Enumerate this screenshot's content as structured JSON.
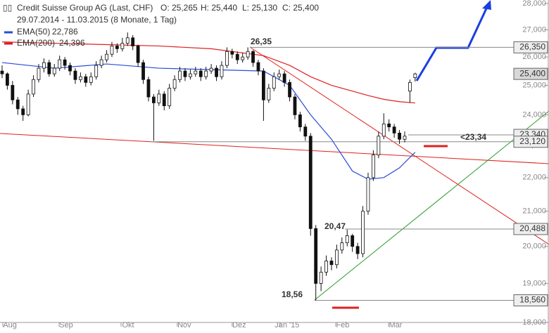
{
  "chart_data": {
    "type": "candlestick",
    "header": {
      "title": "Credit Suisse Group AG (Last, CHF)",
      "open": "O: 25,265",
      "high": "H: 25,440",
      "low": "L: 25,130",
      "close": "C: 25,400",
      "range": "29.07.2014 - 11.03.2015 (8 Monate, 1 Tag)"
    },
    "log_scale": true,
    "ylim": [
      18000,
      28000
    ],
    "yticks": [
      {
        "value": 18000,
        "label": "18,000"
      },
      {
        "value": 19000,
        "label": "19,000"
      },
      {
        "value": 20000,
        "label": "20,000"
      },
      {
        "value": 21000,
        "label": "21,000"
      },
      {
        "value": 22000,
        "label": "22,000"
      },
      {
        "value": 23000,
        "label": "23,000"
      },
      {
        "value": 24000,
        "label": "24,000"
      },
      {
        "value": 25000,
        "label": "25,000"
      },
      {
        "value": 26000,
        "label": "26,000"
      },
      {
        "value": 27000,
        "label": "27,000"
      },
      {
        "value": 28000,
        "label": "28,000"
      }
    ],
    "xlim": [
      -0.8,
      209.2
    ],
    "xticks": [
      {
        "value": 3,
        "label": "Aug"
      },
      {
        "value": 24.5,
        "label": "Sep"
      },
      {
        "value": 48.2,
        "label": "Okt"
      },
      {
        "value": 69.7,
        "label": "Nov"
      },
      {
        "value": 90.7,
        "label": "Dez"
      },
      {
        "value": 109,
        "label": "Jan '15"
      },
      {
        "value": 130.3,
        "label": "Feb"
      },
      {
        "value": 150.5,
        "label": "Mär"
      }
    ],
    "x": [
      0,
      2,
      4,
      6,
      8,
      10,
      12,
      14,
      16,
      18,
      20,
      22,
      24,
      26,
      28,
      30,
      32,
      34,
      36,
      38,
      40,
      42,
      44,
      46,
      48,
      50,
      52,
      54,
      56,
      58,
      60,
      62,
      64,
      66,
      68,
      70,
      72,
      74,
      76,
      78,
      80,
      82,
      84,
      86,
      88,
      90,
      92,
      94,
      96,
      98,
      100,
      102,
      104,
      106,
      108,
      110,
      112,
      114,
      116,
      118,
      120,
      122,
      124,
      126,
      128,
      130,
      132,
      134,
      136,
      138,
      140,
      142,
      144,
      146,
      148,
      150,
      152,
      154,
      156,
      158
    ],
    "ohlc": [
      [
        25500,
        25700,
        25250,
        25400
      ],
      [
        25400,
        25450,
        24850,
        25000
      ],
      [
        25000,
        25150,
        24350,
        24500
      ],
      [
        24500,
        24600,
        24000,
        24200
      ],
      [
        24200,
        24300,
        23800,
        24000
      ],
      [
        24000,
        24850,
        23950,
        24700
      ],
      [
        24700,
        25350,
        24600,
        25200
      ],
      [
        25200,
        25750,
        25100,
        25600
      ],
      [
        25600,
        25950,
        25450,
        25800
      ],
      [
        25800,
        25900,
        25300,
        25400
      ],
      [
        25400,
        25750,
        25300,
        25600
      ],
      [
        25600,
        26050,
        25500,
        25900
      ],
      [
        25900,
        26000,
        25550,
        25700
      ],
      [
        25700,
        25800,
        25350,
        25500
      ],
      [
        25500,
        25600,
        25050,
        25200
      ],
      [
        25200,
        25450,
        25100,
        25300
      ],
      [
        25300,
        25400,
        24950,
        25100
      ],
      [
        25100,
        25450,
        25000,
        25300
      ],
      [
        25300,
        25850,
        25200,
        25700
      ],
      [
        25700,
        26050,
        25600,
        25900
      ],
      [
        25900,
        26250,
        25800,
        26100
      ],
      [
        26100,
        26550,
        26000,
        26400
      ],
      [
        26400,
        26500,
        26150,
        26300
      ],
      [
        26300,
        26700,
        26200,
        26500
      ],
      [
        26500,
        26900,
        26400,
        26700
      ],
      [
        26700,
        26800,
        26250,
        26400
      ],
      [
        26400,
        26450,
        25650,
        25800
      ],
      [
        25800,
        25900,
        25050,
        25200
      ],
      [
        25200,
        25300,
        24450,
        24600
      ],
      [
        24600,
        24700,
        23150,
        24400
      ],
      [
        24400,
        24850,
        24300,
        24700
      ],
      [
        24700,
        24800,
        24150,
        24300
      ],
      [
        24300,
        25050,
        24200,
        24900
      ],
      [
        24900,
        25350,
        24800,
        25200
      ],
      [
        25200,
        25650,
        25100,
        25500
      ],
      [
        25500,
        25600,
        25150,
        25300
      ],
      [
        25300,
        25550,
        25200,
        25400
      ],
      [
        25400,
        25650,
        25300,
        25500
      ],
      [
        25500,
        25600,
        25150,
        25300
      ],
      [
        25300,
        25650,
        25200,
        25500
      ],
      [
        25500,
        25750,
        25400,
        25600
      ],
      [
        25600,
        25700,
        25150,
        25300
      ],
      [
        25300,
        25850,
        25200,
        25700
      ],
      [
        25700,
        26350,
        25600,
        26200
      ],
      [
        26200,
        26300,
        25950,
        26100
      ],
      [
        26100,
        26200,
        25750,
        25900
      ],
      [
        25900,
        26150,
        25800,
        26000
      ],
      [
        26000,
        26350,
        25900,
        26200
      ],
      [
        26200,
        26250,
        25650,
        25800
      ],
      [
        25800,
        25900,
        25350,
        25500
      ],
      [
        25500,
        25600,
        23800,
        24500
      ],
      [
        24500,
        25050,
        24400,
        24900
      ],
      [
        24900,
        25450,
        24800,
        25300
      ],
      [
        25300,
        25550,
        25200,
        25400
      ],
      [
        25400,
        25500,
        24950,
        25100
      ],
      [
        25100,
        25200,
        24450,
        24600
      ],
      [
        24600,
        24700,
        23850,
        24000
      ],
      [
        24000,
        24100,
        23450,
        23600
      ],
      [
        23600,
        23700,
        23150,
        23300
      ],
      [
        23300,
        23400,
        20300,
        20500
      ],
      [
        20500,
        20600,
        18560,
        19000
      ],
      [
        19000,
        19450,
        18800,
        19300
      ],
      [
        19300,
        19750,
        19200,
        19600
      ],
      [
        19600,
        19700,
        19350,
        19500
      ],
      [
        19500,
        20050,
        19400,
        19900
      ],
      [
        19900,
        20250,
        19800,
        20100
      ],
      [
        20100,
        20470,
        20000,
        20300
      ],
      [
        20300,
        20350,
        19850,
        20000
      ],
      [
        20000,
        20100,
        19650,
        19800
      ],
      [
        19800,
        21150,
        19700,
        21000
      ],
      [
        21000,
        22150,
        20900,
        22000
      ],
      [
        22000,
        22850,
        21900,
        22700
      ],
      [
        22700,
        23450,
        22600,
        23300
      ],
      [
        23300,
        24050,
        23200,
        23700
      ],
      [
        23700,
        23850,
        23450,
        23600
      ],
      [
        23600,
        23700,
        23250,
        23400
      ],
      [
        23400,
        23500,
        23050,
        23200
      ],
      [
        23200,
        23450,
        23100,
        23300
      ],
      [
        24800,
        25200,
        24400,
        25100
      ],
      [
        25265,
        25440,
        25130,
        25400
      ]
    ],
    "series": [
      {
        "name": "EMA(50)",
        "color": "#2a4bd7",
        "last_label": "22,786",
        "x": [
          0,
          20,
          40,
          60,
          80,
          100,
          110,
          118,
          126,
          134,
          140,
          146,
          152,
          158
        ],
        "values": [
          25800,
          25600,
          25750,
          25600,
          25550,
          25500,
          25000,
          24000,
          23200,
          22200,
          21950,
          22000,
          22300,
          22786
        ]
      },
      {
        "name": "EMA(200)",
        "color": "#e02020",
        "last_label": "24,396",
        "x": [
          0,
          20,
          40,
          60,
          80,
          100,
          110,
          118,
          126,
          134,
          140,
          146,
          152,
          158
        ],
        "values": [
          26550,
          26500,
          26450,
          26400,
          26300,
          26050,
          25700,
          25300,
          25000,
          24800,
          24650,
          24520,
          24440,
          24396
        ]
      }
    ],
    "levels": [
      {
        "value": 26350,
        "label": "26,350"
      },
      {
        "value": 25400,
        "label": "25,400"
      },
      {
        "value": 23340,
        "label": "23,340"
      },
      {
        "value": 23120,
        "label": "23,120"
      },
      {
        "value": 20488,
        "label": "20,488"
      },
      {
        "value": 18560,
        "label": "18,560"
      }
    ],
    "annotations": [
      "26,35",
      "<23,34",
      "20,47",
      "18,56"
    ]
  }
}
